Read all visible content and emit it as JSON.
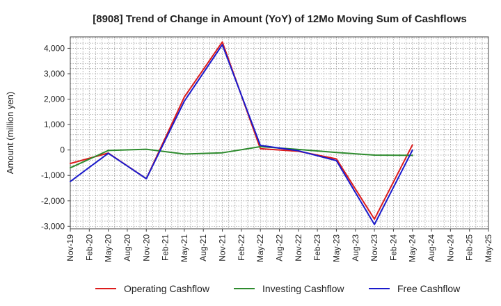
{
  "chart_data": {
    "type": "line",
    "title": "[8908]  Trend of Change in Amount (YoY) of 12Mo Moving Sum of Cashflows",
    "xlabel": "",
    "ylabel": "Amount (million yen)",
    "ylim": [
      -3100,
      4450
    ],
    "yticks": [
      -3000,
      -2000,
      -1000,
      0,
      1000,
      2000,
      3000,
      4000
    ],
    "ytick_labels": [
      "-3,000",
      "-2,000",
      "-1,000",
      "0",
      "1,000",
      "2,000",
      "3,000",
      "4,000"
    ],
    "categories": [
      "Nov-19",
      "Feb-20",
      "May-20",
      "Aug-20",
      "Nov-20",
      "Feb-21",
      "May-21",
      "Aug-21",
      "Nov-21",
      "Feb-22",
      "May-22",
      "Aug-22",
      "Nov-22",
      "Feb-23",
      "May-23",
      "Aug-23",
      "Nov-23",
      "Feb-24",
      "May-24",
      "Aug-24",
      "Nov-24",
      "Feb-25",
      "May-25"
    ],
    "grid": true,
    "legend_position": "bottom",
    "series": [
      {
        "name": "Operating Cashflow",
        "color": "#dd1c1c",
        "values": [
          -530,
          null,
          -120,
          null,
          -1130,
          null,
          2080,
          null,
          4250,
          null,
          50,
          null,
          -50,
          null,
          -350,
          null,
          -2720,
          null,
          200,
          null,
          null,
          null,
          null
        ]
      },
      {
        "name": "Investing Cashflow",
        "color": "#2e8b2e",
        "values": [
          -700,
          null,
          -20,
          null,
          30,
          null,
          -160,
          null,
          -110,
          null,
          130,
          null,
          20,
          null,
          -100,
          null,
          -200,
          null,
          -210,
          null,
          null,
          null,
          null
        ]
      },
      {
        "name": "Free Cashflow",
        "color": "#1a1acc",
        "values": [
          -1240,
          null,
          -130,
          null,
          -1130,
          null,
          1920,
          null,
          4140,
          null,
          180,
          null,
          -30,
          null,
          -420,
          null,
          -2930,
          null,
          -10,
          null,
          null,
          null,
          null
        ]
      }
    ]
  }
}
